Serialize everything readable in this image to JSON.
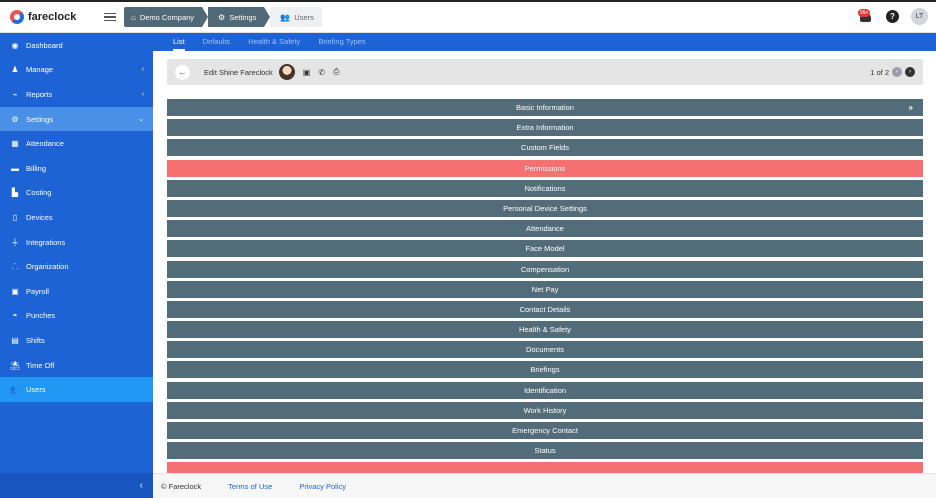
{
  "app": {
    "name": "fareclock"
  },
  "breadcrumb": [
    {
      "label": "Demo Company",
      "icon": "home-icon"
    },
    {
      "label": "Settings",
      "icon": "gear-icon"
    },
    {
      "label": "Users",
      "icon": "users-icon"
    }
  ],
  "header": {
    "notification_count": "99+",
    "help": "?",
    "user_initials": "LT"
  },
  "sidebar": {
    "items": [
      {
        "label": "Dashboard",
        "icon": "dashboard-icon"
      },
      {
        "label": "Manage",
        "icon": "user-icon"
      },
      {
        "label": "Reports",
        "icon": "chart-icon"
      },
      {
        "label": "Settings",
        "icon": "gear-icon"
      },
      {
        "label": "Attendance",
        "icon": "attendance-icon"
      },
      {
        "label": "Billing",
        "icon": "card-icon"
      },
      {
        "label": "Costing",
        "icon": "factory-icon"
      },
      {
        "label": "Devices",
        "icon": "tablet-icon"
      },
      {
        "label": "Integrations",
        "icon": "plug-icon"
      },
      {
        "label": "Organization",
        "icon": "sitemap-icon"
      },
      {
        "label": "Payroll",
        "icon": "money-icon"
      },
      {
        "label": "Punches",
        "icon": "punch-icon"
      },
      {
        "label": "Shifts",
        "icon": "calendar-icon"
      },
      {
        "label": "Time Off",
        "icon": "beach-icon"
      },
      {
        "label": "Users",
        "icon": "users-icon"
      }
    ]
  },
  "tabs": [
    {
      "label": "List"
    },
    {
      "label": "Defaults"
    },
    {
      "label": "Health & Safety"
    },
    {
      "label": "Briefing Types"
    }
  ],
  "edit": {
    "title": "Edit Shine Fareclock",
    "pager": "1 of 2"
  },
  "sections": [
    {
      "label": "Basic Information"
    },
    {
      "label": "Extra Information"
    },
    {
      "label": "Custom Fields"
    },
    {
      "label": "Permissions"
    },
    {
      "label": "Notifications"
    },
    {
      "label": "Personal Device Settings"
    },
    {
      "label": "Attendance"
    },
    {
      "label": "Face Model"
    },
    {
      "label": "Compensation"
    },
    {
      "label": "Net Pay"
    },
    {
      "label": "Contact Details"
    },
    {
      "label": "Health & Safety"
    },
    {
      "label": "Documents"
    },
    {
      "label": "Briefings"
    },
    {
      "label": "Identification"
    },
    {
      "label": "Work History"
    },
    {
      "label": "Emergency Contact"
    },
    {
      "label": "Status"
    },
    {
      "label": ""
    }
  ],
  "footer": {
    "copyright": "© Fareclock",
    "terms": "Terms of Use",
    "privacy": "Privacy Policy"
  },
  "colors": {
    "sidebar": "#1e63d6",
    "section": "#536c7a",
    "alert": "#f57070",
    "active": "#2196f3"
  }
}
